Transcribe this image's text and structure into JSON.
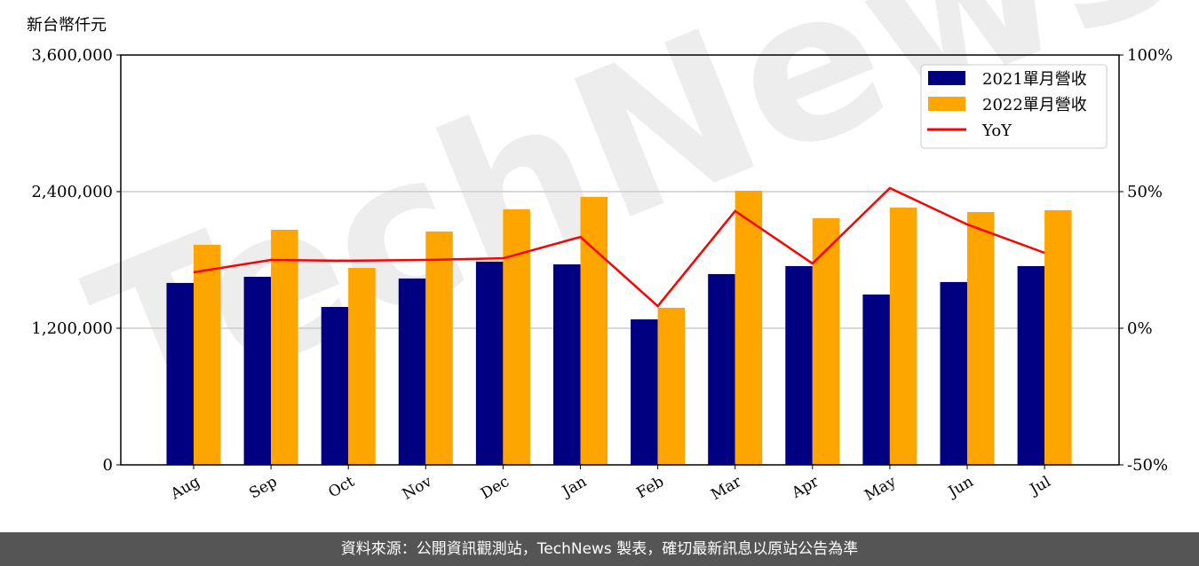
{
  "chart_data": {
    "type": "bar",
    "ylabel": "新台幣仟元",
    "categories": [
      "Aug",
      "Sep",
      "Oct",
      "Nov",
      "Dec",
      "Jan",
      "Feb",
      "Mar",
      "Apr",
      "May",
      "Jun",
      "Jul"
    ],
    "series": [
      {
        "name": "2021單月營收",
        "type": "bar",
        "color": "#000080",
        "values": [
          1598000,
          1652000,
          1387000,
          1637000,
          1785000,
          1761000,
          1278000,
          1676000,
          1746000,
          1496000,
          1606000,
          1746000
        ]
      },
      {
        "name": "2022單月營收",
        "type": "bar",
        "color": "#FFA500",
        "values": [
          1933000,
          2065000,
          1730000,
          2050000,
          2245000,
          2354000,
          1380000,
          2408000,
          2167000,
          2260000,
          2221000,
          2237000
        ]
      },
      {
        "name": "YoY",
        "type": "line",
        "axis": "right",
        "color": "#FF0000",
        "values": [
          20.5,
          25.0,
          24.7,
          25.0,
          25.6,
          33.4,
          8.1,
          42.9,
          23.7,
          51.3,
          38.0,
          27.6
        ]
      }
    ],
    "ylim": [
      0,
      3600000
    ],
    "yticks": [
      "0",
      "1,200,000",
      "2,400,000",
      "3,600,000"
    ],
    "ytick_values": [
      0,
      1200000,
      2400000,
      3600000
    ],
    "y2lim": [
      -50,
      100
    ],
    "y2ticks": [
      "-50%",
      "0%",
      "50%",
      "100%"
    ],
    "y2tick_values": [
      -50,
      0,
      50,
      100
    ],
    "grid": "horizontal",
    "legend": "top-right"
  },
  "watermark": "TechNews",
  "footer": "資料來源：公開資訊觀測站，TechNews 製表，確切最新訊息以原站公告為準"
}
